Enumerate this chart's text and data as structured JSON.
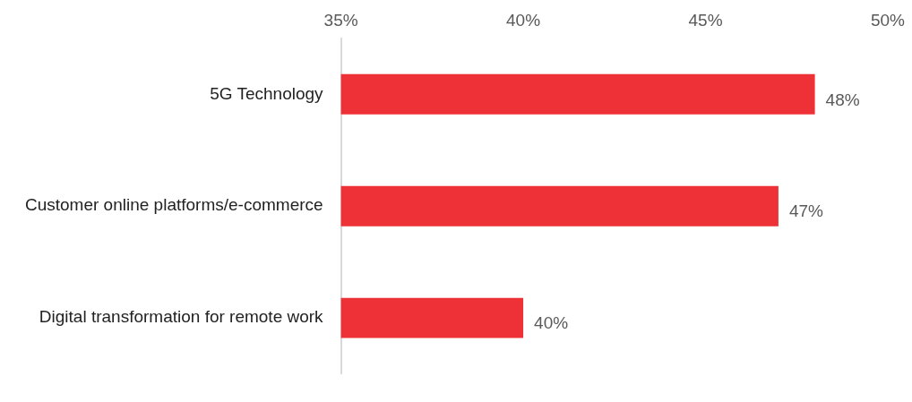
{
  "chart_data": {
    "type": "bar",
    "orientation": "horizontal",
    "categories": [
      "5G Technology",
      "Customer online platforms/e-commerce",
      "Digital transformation for remote work"
    ],
    "values": [
      48,
      47,
      40
    ],
    "color": "#ee3136",
    "value_labels": [
      "48%",
      "47%",
      "40%"
    ],
    "xlim": [
      35,
      50
    ],
    "xticks": [
      {
        "value": 35,
        "label": "35%"
      },
      {
        "value": 40,
        "label": "40%"
      },
      {
        "value": 45,
        "label": "45%"
      },
      {
        "value": 50,
        "label": "50%"
      }
    ]
  }
}
